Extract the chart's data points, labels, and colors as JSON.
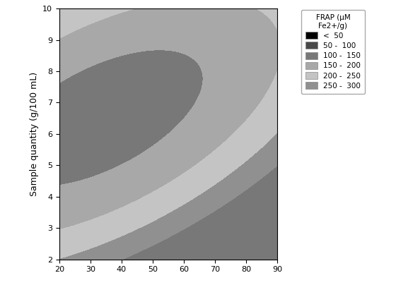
{
  "x_range": [
    20,
    90
  ],
  "y_range": [
    2,
    10
  ],
  "x_ticks": [
    20,
    30,
    40,
    50,
    60,
    70,
    80,
    90
  ],
  "y_ticks": [
    2,
    3,
    4,
    5,
    6,
    7,
    8,
    9,
    10
  ],
  "ylabel": "Sample quantity (g/100 mL)",
  "levels": [
    0,
    50,
    100,
    150,
    200,
    250,
    300,
    500
  ],
  "colors": [
    "#000000",
    "#484848",
    "#787878",
    "#a8a8a8",
    "#c4c4c4",
    "#909090",
    "#787878"
  ],
  "legend_title": "FRAP (μM\nFe2+/g)",
  "legend_labels": [
    "<  50",
    "50 -  100",
    "100 -  150",
    "150 -  200",
    "200 -  250",
    "250 -  300"
  ],
  "legend_colors": [
    "#000000",
    "#484848",
    "#787878",
    "#a8a8a8",
    "#c4c4c4",
    "#909090"
  ]
}
